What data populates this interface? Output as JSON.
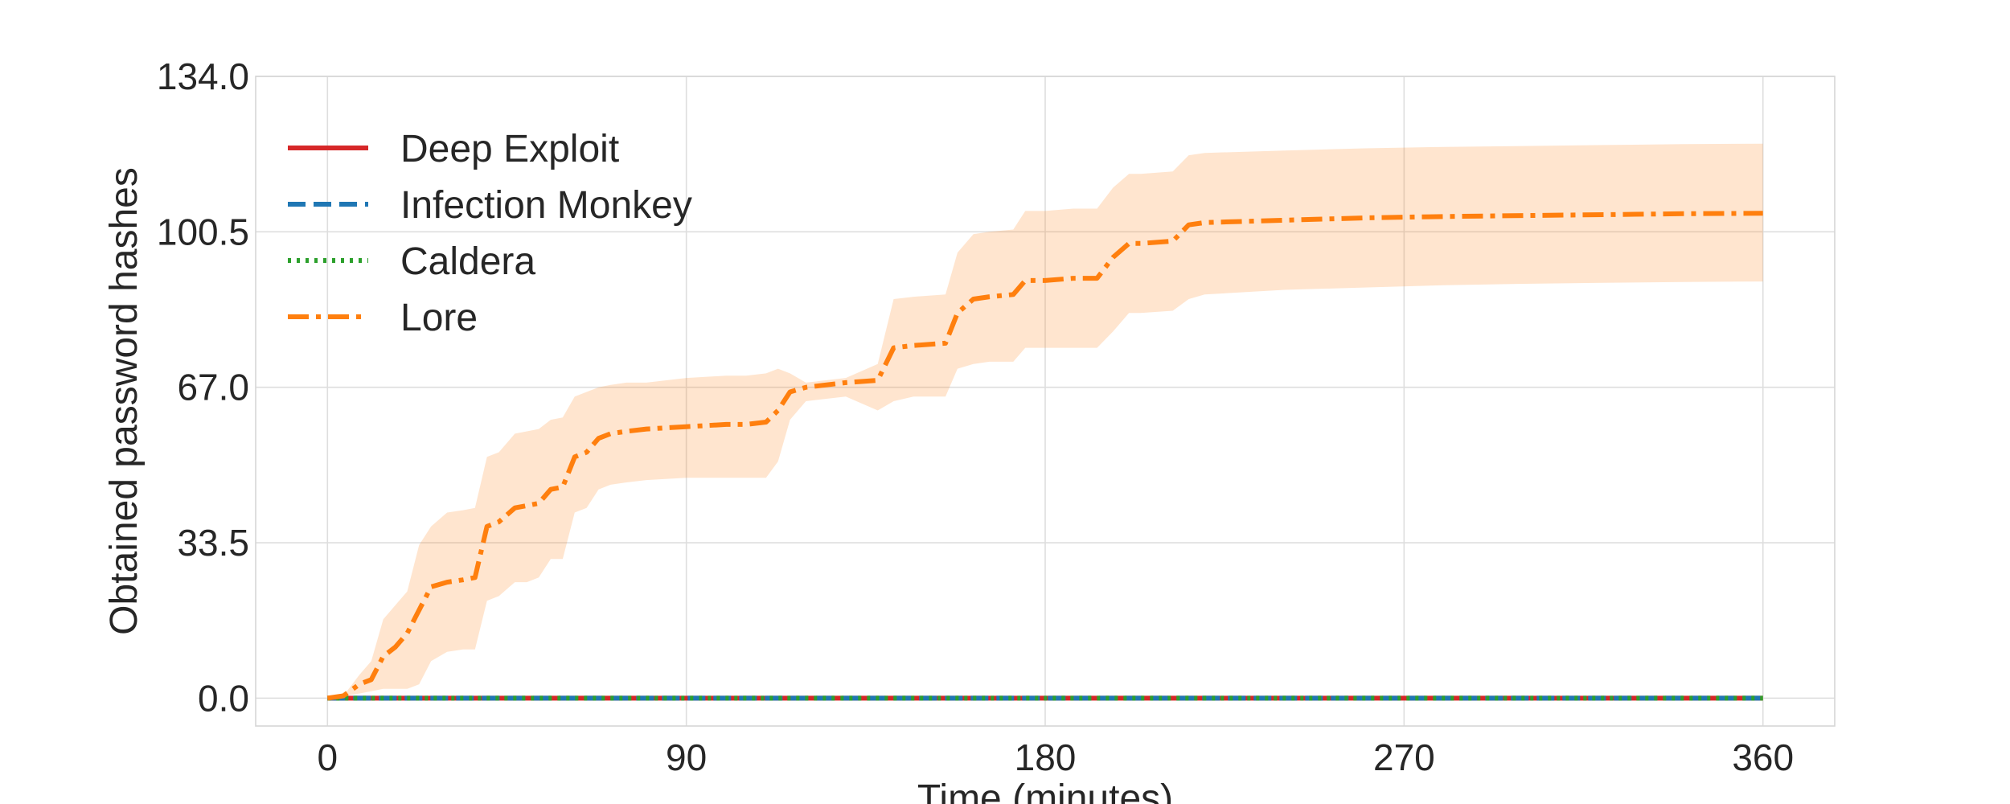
{
  "chart_data": {
    "type": "line",
    "title": "",
    "xlabel": "Time (minutes)",
    "ylabel": "Obtained password hashes",
    "xlim": [
      -18,
      378
    ],
    "ylim": [
      -6,
      134
    ],
    "xticks": [
      0,
      90,
      180,
      270,
      360
    ],
    "xtick_labels": [
      "0",
      "90",
      "180",
      "270",
      "360"
    ],
    "yticks": [
      0,
      33.5,
      67,
      100.5,
      134
    ],
    "ytick_labels": [
      "0.0",
      "33.5",
      "67.0",
      "100.5",
      "134.0"
    ],
    "grid": true,
    "legend_position": "top-left",
    "series": [
      {
        "name": "Deep Exploit",
        "color": "#d62728",
        "style": "solid",
        "x": [
          0,
          360
        ],
        "y": [
          0,
          0
        ]
      },
      {
        "name": "Infection Monkey",
        "color": "#1f77b4",
        "style": "dashed",
        "x": [
          0,
          360
        ],
        "y": [
          0,
          0
        ]
      },
      {
        "name": "Caldera",
        "color": "#2ca02c",
        "style": "dotted",
        "x": [
          0,
          360
        ],
        "y": [
          0,
          0
        ]
      },
      {
        "name": "Lore",
        "color": "#ff7f0e",
        "style": "dashdot",
        "x": [
          0,
          4,
          8,
          11,
          14,
          17,
          20,
          23,
          26,
          30,
          34,
          37,
          40,
          43,
          47,
          50,
          53,
          56,
          59,
          62,
          65,
          68,
          71,
          75,
          80,
          90,
          100,
          105,
          110,
          113,
          116,
          120,
          130,
          138,
          142,
          147,
          155,
          158,
          162,
          166,
          172,
          175,
          180,
          187,
          193,
          197,
          201,
          204,
          212,
          216,
          220,
          240,
          260,
          280,
          300,
          320,
          340,
          360
        ],
        "y": [
          0,
          0.5,
          3,
          4,
          9,
          11,
          14,
          19,
          24,
          25,
          25.5,
          26,
          37,
          38,
          41,
          41.5,
          42,
          45,
          45.5,
          52,
          53,
          56,
          57,
          57.5,
          58,
          58.5,
          59,
          59,
          59.5,
          62,
          66,
          67,
          68,
          68.5,
          75.5,
          76,
          76.5,
          83,
          86,
          86.5,
          87,
          90,
          90,
          90.5,
          90.5,
          95,
          98,
          98,
          98.5,
          102,
          102.5,
          103,
          103.5,
          103.8,
          104,
          104.2,
          104.4,
          104.5
        ]
      }
    ],
    "band": {
      "series": "Lore",
      "color": "#ff7f0e",
      "x": [
        0,
        4,
        8,
        11,
        14,
        17,
        20,
        23,
        26,
        30,
        34,
        37,
        40,
        43,
        47,
        50,
        53,
        56,
        59,
        62,
        65,
        68,
        71,
        75,
        80,
        90,
        100,
        105,
        110,
        113,
        116,
        120,
        130,
        138,
        142,
        147,
        155,
        158,
        162,
        166,
        172,
        175,
        180,
        187,
        193,
        197,
        201,
        204,
        212,
        216,
        220,
        240,
        260,
        280,
        300,
        320,
        340,
        360
      ],
      "lower": [
        0,
        0.5,
        1,
        1.5,
        2,
        2,
        2,
        3,
        8,
        10,
        10.5,
        10.5,
        21,
        22,
        25,
        25,
        26,
        30,
        30,
        40,
        41,
        45,
        46,
        46.5,
        47,
        47.5,
        47.5,
        47.5,
        47.5,
        51,
        60,
        64,
        65,
        62,
        64,
        65,
        65,
        71,
        72,
        72.5,
        72.5,
        75.5,
        75.5,
        75.5,
        75.5,
        79,
        83,
        83,
        83.5,
        86,
        87,
        88,
        88.5,
        89,
        89.3,
        89.5,
        89.7,
        89.8
      ],
      "upper": [
        0,
        0.5,
        5,
        8,
        17,
        20,
        23,
        33,
        37,
        40,
        40.5,
        41,
        52,
        53,
        57,
        57.5,
        58,
        60,
        60.5,
        65,
        66,
        67,
        67.5,
        68,
        68,
        69,
        69.5,
        69.5,
        70,
        71,
        70,
        68,
        69,
        72,
        86,
        86.5,
        87,
        96,
        100,
        100.5,
        101,
        105,
        105,
        105.5,
        105.5,
        110,
        113,
        113,
        113.5,
        117,
        117.5,
        118,
        118.5,
        118.8,
        119,
        119.2,
        119.4,
        119.5
      ]
    }
  }
}
